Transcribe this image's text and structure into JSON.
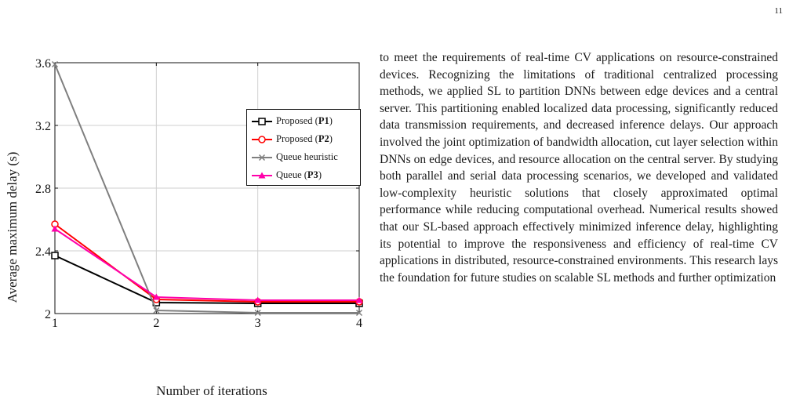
{
  "page_number": "11",
  "figure": {
    "legend": [
      {
        "label": "Proposed (",
        "bold": "P1",
        "suffix": ")",
        "color": "#000000",
        "marker": "square"
      },
      {
        "label": "Proposed (",
        "bold": "P2",
        "suffix": ")",
        "color": "#ff0000",
        "marker": "circle"
      },
      {
        "label": "Queue heuristic",
        "bold": "",
        "suffix": "",
        "color": "#7f7f7f",
        "marker": "cross"
      },
      {
        "label": "Queue (",
        "bold": "P3",
        "suffix": ")",
        "color": "#ff00aa",
        "marker": "triangle"
      }
    ]
  },
  "chart_data": {
    "type": "line",
    "title": "",
    "xlabel": "Number of iterations",
    "ylabel": "Average maximum delay (s)",
    "x": [
      1,
      2,
      3,
      4
    ],
    "xticks": [
      "1",
      "2",
      "3",
      "4"
    ],
    "yticks": [
      "2",
      "2.4",
      "2.8",
      "3.2",
      "3.6"
    ],
    "xlim": [
      1,
      4
    ],
    "ylim": [
      2,
      3.6
    ],
    "grid": true,
    "legend_position": "top-right",
    "series": [
      {
        "name": "Proposed (P1)",
        "values": [
          2.37,
          2.07,
          2.065,
          2.065
        ],
        "color": "#000000",
        "marker": "square"
      },
      {
        "name": "Proposed (P2)",
        "values": [
          2.57,
          2.09,
          2.075,
          2.075
        ],
        "color": "#ff0000",
        "marker": "circle"
      },
      {
        "name": "Queue heuristic",
        "values": [
          3.59,
          2.02,
          2.005,
          2.005
        ],
        "color": "#7f7f7f",
        "marker": "cross"
      },
      {
        "name": "Queue (P3)",
        "values": [
          2.54,
          2.105,
          2.085,
          2.085
        ],
        "color": "#ff00aa",
        "marker": "triangle"
      }
    ]
  },
  "text": {
    "paragraph": "to meet the requirements of real-time CV applications on resource-constrained devices. Recognizing the limitations of traditional centralized processing methods, we applied SL to partition DNNs between edge devices and a central server. This partitioning enabled localized data processing, significantly reduced data transmission requirements, and decreased inference delays. Our approach involved the joint optimization of bandwidth allocation, cut layer selection within DNNs on edge devices, and resource allocation on the central server. By studying both parallel and serial data processing scenarios, we developed and validated low-complexity heuristic solutions that closely approximated optimal performance while reducing computational overhead. Numerical results showed that our SL-based approach effectively minimized inference delay, highlighting its potential to improve the responsiveness and efficiency of real-time CV applications in distributed, resource-constrained environments. This research lays the foundation for future studies on scalable SL methods and further optimization"
  }
}
